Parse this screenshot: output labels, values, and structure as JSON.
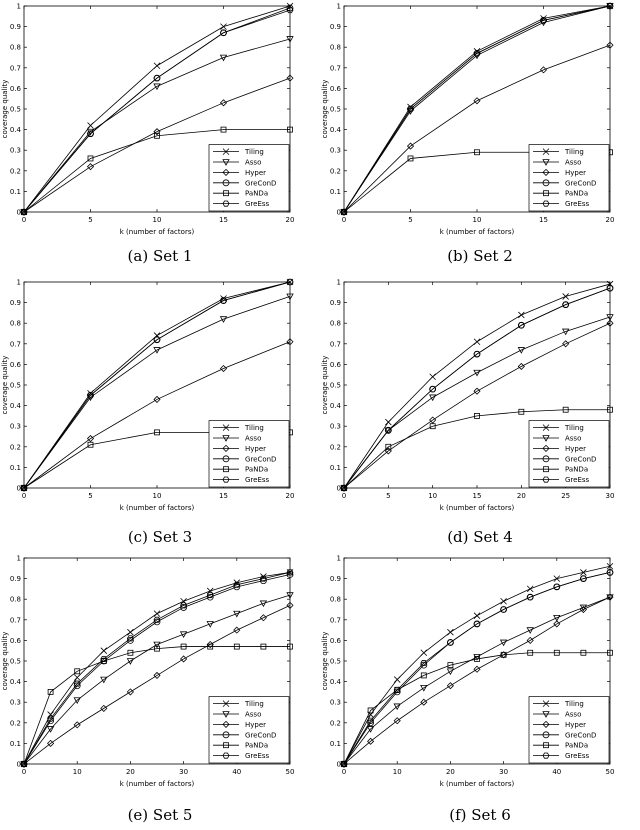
{
  "figure": {
    "panels": [
      {
        "caption": "(a) Set 1"
      },
      {
        "caption": "(b) Set 2"
      },
      {
        "caption": "(c) Set 3"
      },
      {
        "caption": "(d) Set 4"
      },
      {
        "caption": "(e) Set 5"
      },
      {
        "caption": "(f) Set 6"
      }
    ]
  },
  "chart_data": [
    {
      "type": "line",
      "xlabel": "k (number of factors)",
      "ylabel": "coverage quality",
      "xlim": [
        0,
        20
      ],
      "ylim": [
        0,
        1
      ],
      "xticks": [
        0,
        5,
        10,
        15,
        20
      ],
      "yticks": [
        0,
        0.1,
        0.2,
        0.3,
        0.4,
        0.5,
        0.6,
        0.7,
        0.8,
        0.9,
        1
      ],
      "legend_position": "bottom-right",
      "series": [
        {
          "name": "Tiling",
          "marker": "x",
          "x": [
            0,
            5,
            10,
            15,
            20
          ],
          "y": [
            0,
            0.42,
            0.71,
            0.9,
            1.0
          ]
        },
        {
          "name": "Asso",
          "marker": "triangle-down",
          "x": [
            0,
            5,
            10,
            15,
            20
          ],
          "y": [
            0,
            0.39,
            0.61,
            0.75,
            0.84
          ]
        },
        {
          "name": "Hyper",
          "marker": "diamond",
          "x": [
            0,
            5,
            10,
            15,
            20
          ],
          "y": [
            0,
            0.22,
            0.39,
            0.53,
            0.65
          ]
        },
        {
          "name": "GreConD",
          "marker": "circle",
          "x": [
            0,
            5,
            10,
            15,
            20
          ],
          "y": [
            0,
            0.38,
            0.65,
            0.87,
            0.99
          ]
        },
        {
          "name": "PaNDa",
          "marker": "square",
          "x": [
            0,
            5,
            10,
            15,
            20
          ],
          "y": [
            0,
            0.26,
            0.37,
            0.4,
            0.4
          ]
        },
        {
          "name": "GreEss",
          "marker": "hexagon",
          "x": [
            0,
            5,
            10,
            15,
            20
          ],
          "y": [
            0,
            0.38,
            0.65,
            0.87,
            0.98
          ]
        }
      ]
    },
    {
      "type": "line",
      "xlabel": "k (number of factors)",
      "ylabel": "coverage quality",
      "xlim": [
        0,
        20
      ],
      "ylim": [
        0,
        1
      ],
      "xticks": [
        0,
        5,
        10,
        15,
        20
      ],
      "yticks": [
        0,
        0.1,
        0.2,
        0.3,
        0.4,
        0.5,
        0.6,
        0.7,
        0.8,
        0.9,
        1
      ],
      "legend_position": "bottom-right",
      "series": [
        {
          "name": "Tiling",
          "marker": "x",
          "x": [
            0,
            5,
            10,
            15,
            20
          ],
          "y": [
            0,
            0.51,
            0.78,
            0.94,
            1.0
          ]
        },
        {
          "name": "Asso",
          "marker": "triangle-down",
          "x": [
            0,
            5,
            10,
            15,
            20
          ],
          "y": [
            0,
            0.49,
            0.76,
            0.92,
            1.0
          ]
        },
        {
          "name": "Hyper",
          "marker": "diamond",
          "x": [
            0,
            5,
            10,
            15,
            20
          ],
          "y": [
            0,
            0.32,
            0.54,
            0.69,
            0.81
          ]
        },
        {
          "name": "GreConD",
          "marker": "circle",
          "x": [
            0,
            5,
            10,
            15,
            20
          ],
          "y": [
            0,
            0.5,
            0.77,
            0.93,
            1.0
          ]
        },
        {
          "name": "PaNDa",
          "marker": "square",
          "x": [
            0,
            5,
            10,
            15,
            20
          ],
          "y": [
            0,
            0.26,
            0.29,
            0.29,
            0.29
          ]
        },
        {
          "name": "GreEss",
          "marker": "hexagon",
          "x": [
            0,
            5,
            10,
            15,
            20
          ],
          "y": [
            0,
            0.5,
            0.77,
            0.93,
            1.0
          ]
        }
      ]
    },
    {
      "type": "line",
      "xlabel": "k (number of factors)",
      "ylabel": "coverage quality",
      "xlim": [
        0,
        20
      ],
      "ylim": [
        0,
        1
      ],
      "xticks": [
        0,
        5,
        10,
        15,
        20
      ],
      "yticks": [
        0,
        0.1,
        0.2,
        0.3,
        0.4,
        0.5,
        0.6,
        0.7,
        0.8,
        0.9,
        1
      ],
      "legend_position": "bottom-right",
      "series": [
        {
          "name": "Tiling",
          "marker": "x",
          "x": [
            0,
            5,
            10,
            15,
            20
          ],
          "y": [
            0,
            0.46,
            0.74,
            0.92,
            1.0
          ]
        },
        {
          "name": "Asso",
          "marker": "triangle-down",
          "x": [
            0,
            5,
            10,
            15,
            20
          ],
          "y": [
            0,
            0.44,
            0.67,
            0.82,
            0.93
          ]
        },
        {
          "name": "Hyper",
          "marker": "diamond",
          "x": [
            0,
            5,
            10,
            15,
            20
          ],
          "y": [
            0,
            0.24,
            0.43,
            0.58,
            0.71
          ]
        },
        {
          "name": "GreConD",
          "marker": "circle",
          "x": [
            0,
            5,
            10,
            15,
            20
          ],
          "y": [
            0,
            0.45,
            0.72,
            0.91,
            1.0
          ]
        },
        {
          "name": "PaNDa",
          "marker": "square",
          "x": [
            0,
            5,
            10,
            15,
            20
          ],
          "y": [
            0,
            0.21,
            0.27,
            0.27,
            0.27
          ]
        },
        {
          "name": "GreEss",
          "marker": "hexagon",
          "x": [
            0,
            5,
            10,
            15,
            20
          ],
          "y": [
            0,
            0.45,
            0.72,
            0.91,
            1.0
          ]
        }
      ]
    },
    {
      "type": "line",
      "xlabel": "k (number of factors)",
      "ylabel": "coverage quality",
      "xlim": [
        0,
        30
      ],
      "ylim": [
        0,
        1
      ],
      "xticks": [
        0,
        5,
        10,
        15,
        20,
        25,
        30
      ],
      "yticks": [
        0,
        0.1,
        0.2,
        0.3,
        0.4,
        0.5,
        0.6,
        0.7,
        0.8,
        0.9,
        1
      ],
      "legend_position": "bottom-right",
      "series": [
        {
          "name": "Tiling",
          "marker": "x",
          "x": [
            0,
            5,
            10,
            15,
            20,
            25,
            30
          ],
          "y": [
            0,
            0.32,
            0.54,
            0.71,
            0.84,
            0.93,
            0.99
          ]
        },
        {
          "name": "Asso",
          "marker": "triangle-down",
          "x": [
            0,
            5,
            10,
            15,
            20,
            25,
            30
          ],
          "y": [
            0,
            0.28,
            0.44,
            0.56,
            0.67,
            0.76,
            0.83
          ]
        },
        {
          "name": "Hyper",
          "marker": "diamond",
          "x": [
            0,
            5,
            10,
            15,
            20,
            25,
            30
          ],
          "y": [
            0,
            0.18,
            0.33,
            0.47,
            0.59,
            0.7,
            0.8
          ]
        },
        {
          "name": "GreConD",
          "marker": "circle",
          "x": [
            0,
            5,
            10,
            15,
            20,
            25,
            30
          ],
          "y": [
            0,
            0.28,
            0.48,
            0.65,
            0.79,
            0.89,
            0.97
          ]
        },
        {
          "name": "PaNDa",
          "marker": "square",
          "x": [
            0,
            5,
            10,
            15,
            20,
            25,
            30
          ],
          "y": [
            0,
            0.2,
            0.3,
            0.35,
            0.37,
            0.38,
            0.38
          ]
        },
        {
          "name": "GreEss",
          "marker": "hexagon",
          "x": [
            0,
            5,
            10,
            15,
            20,
            25,
            30
          ],
          "y": [
            0,
            0.28,
            0.48,
            0.65,
            0.79,
            0.89,
            0.97
          ]
        }
      ]
    },
    {
      "type": "line",
      "xlabel": "k (number of factors)",
      "ylabel": "coverage quality",
      "xlim": [
        0,
        50
      ],
      "ylim": [
        0,
        1
      ],
      "xticks": [
        0,
        10,
        20,
        30,
        40,
        50
      ],
      "yticks": [
        0,
        0.1,
        0.2,
        0.3,
        0.4,
        0.5,
        0.6,
        0.7,
        0.8,
        0.9,
        1
      ],
      "legend_position": "bottom-right",
      "series": [
        {
          "name": "Tiling",
          "marker": "x",
          "x": [
            0,
            5,
            10,
            15,
            20,
            25,
            30,
            35,
            40,
            45,
            50
          ],
          "y": [
            0,
            0.24,
            0.42,
            0.55,
            0.64,
            0.73,
            0.79,
            0.84,
            0.88,
            0.91,
            0.93
          ]
        },
        {
          "name": "Asso",
          "marker": "triangle-down",
          "x": [
            0,
            5,
            10,
            15,
            20,
            25,
            30,
            35,
            40,
            45,
            50
          ],
          "y": [
            0,
            0.17,
            0.31,
            0.41,
            0.5,
            0.58,
            0.63,
            0.68,
            0.73,
            0.78,
            0.82
          ]
        },
        {
          "name": "Hyper",
          "marker": "diamond",
          "x": [
            0,
            5,
            10,
            15,
            20,
            25,
            30,
            35,
            40,
            45,
            50
          ],
          "y": [
            0,
            0.1,
            0.19,
            0.27,
            0.35,
            0.43,
            0.51,
            0.58,
            0.65,
            0.71,
            0.77
          ]
        },
        {
          "name": "GreConD",
          "marker": "circle",
          "x": [
            0,
            5,
            10,
            15,
            20,
            25,
            30,
            35,
            40,
            45,
            50
          ],
          "y": [
            0,
            0.21,
            0.38,
            0.5,
            0.6,
            0.69,
            0.76,
            0.81,
            0.86,
            0.89,
            0.92
          ]
        },
        {
          "name": "PaNDa",
          "marker": "square",
          "x": [
            0,
            5,
            10,
            15,
            20,
            25,
            30,
            35,
            40,
            45,
            50
          ],
          "y": [
            0,
            0.35,
            0.45,
            0.5,
            0.54,
            0.56,
            0.57,
            0.57,
            0.57,
            0.57,
            0.57
          ]
        },
        {
          "name": "GreEss",
          "marker": "hexagon",
          "x": [
            0,
            5,
            10,
            15,
            20,
            25,
            30,
            35,
            40,
            45,
            50
          ],
          "y": [
            0,
            0.22,
            0.39,
            0.51,
            0.61,
            0.7,
            0.77,
            0.82,
            0.87,
            0.9,
            0.93
          ]
        }
      ]
    },
    {
      "type": "line",
      "xlabel": "k (number of factors)",
      "ylabel": "coverage quality",
      "xlim": [
        0,
        50
      ],
      "ylim": [
        0,
        1
      ],
      "xticks": [
        0,
        10,
        20,
        30,
        40,
        50
      ],
      "yticks": [
        0,
        0.1,
        0.2,
        0.3,
        0.4,
        0.5,
        0.6,
        0.7,
        0.8,
        0.9,
        1
      ],
      "legend_position": "bottom-right",
      "series": [
        {
          "name": "Tiling",
          "marker": "x",
          "x": [
            0,
            5,
            10,
            15,
            20,
            25,
            30,
            35,
            40,
            45,
            50
          ],
          "y": [
            0,
            0.24,
            0.41,
            0.54,
            0.64,
            0.72,
            0.79,
            0.85,
            0.9,
            0.93,
            0.96
          ]
        },
        {
          "name": "Asso",
          "marker": "triangle-down",
          "x": [
            0,
            5,
            10,
            15,
            20,
            25,
            30,
            35,
            40,
            45,
            50
          ],
          "y": [
            0,
            0.17,
            0.28,
            0.37,
            0.45,
            0.52,
            0.59,
            0.65,
            0.71,
            0.76,
            0.81
          ]
        },
        {
          "name": "Hyper",
          "marker": "diamond",
          "x": [
            0,
            5,
            10,
            15,
            20,
            25,
            30,
            35,
            40,
            45,
            50
          ],
          "y": [
            0,
            0.11,
            0.21,
            0.3,
            0.38,
            0.46,
            0.53,
            0.6,
            0.68,
            0.75,
            0.81
          ]
        },
        {
          "name": "GreConD",
          "marker": "circle",
          "x": [
            0,
            5,
            10,
            15,
            20,
            25,
            30,
            35,
            40,
            45,
            50
          ],
          "y": [
            0,
            0.2,
            0.35,
            0.48,
            0.59,
            0.68,
            0.75,
            0.81,
            0.86,
            0.9,
            0.93
          ]
        },
        {
          "name": "PaNDa",
          "marker": "square",
          "x": [
            0,
            5,
            10,
            15,
            20,
            25,
            30,
            35,
            40,
            45,
            50
          ],
          "y": [
            0,
            0.26,
            0.36,
            0.43,
            0.48,
            0.51,
            0.53,
            0.54,
            0.54,
            0.54,
            0.54
          ]
        },
        {
          "name": "GreEss",
          "marker": "hexagon",
          "x": [
            0,
            5,
            10,
            15,
            20,
            25,
            30,
            35,
            40,
            45,
            50
          ],
          "y": [
            0,
            0.21,
            0.36,
            0.49,
            0.59,
            0.68,
            0.75,
            0.81,
            0.86,
            0.9,
            0.93
          ]
        }
      ]
    }
  ]
}
